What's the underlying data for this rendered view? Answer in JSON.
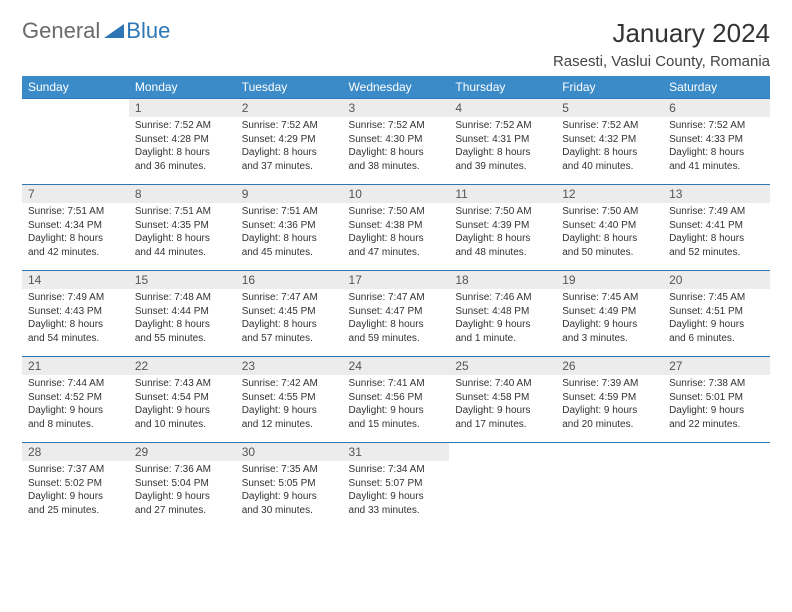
{
  "logo": {
    "general": "General",
    "blue": "Blue"
  },
  "title": "January 2024",
  "location": "Rasesti, Vaslui County, Romania",
  "colors": {
    "header_bg": "#3b8bc9",
    "header_text": "#ffffff",
    "daynum_bg": "#ececec",
    "border": "#2e76b6",
    "logo_gray": "#6a6a6a",
    "logo_blue": "#2e76b6"
  },
  "weekdays": [
    "Sunday",
    "Monday",
    "Tuesday",
    "Wednesday",
    "Thursday",
    "Friday",
    "Saturday"
  ],
  "weeks": [
    [
      {
        "empty": true
      },
      {
        "day": "1",
        "sunrise": "Sunrise: 7:52 AM",
        "sunset": "Sunset: 4:28 PM",
        "day1": "Daylight: 8 hours",
        "day2": "and 36 minutes."
      },
      {
        "day": "2",
        "sunrise": "Sunrise: 7:52 AM",
        "sunset": "Sunset: 4:29 PM",
        "day1": "Daylight: 8 hours",
        "day2": "and 37 minutes."
      },
      {
        "day": "3",
        "sunrise": "Sunrise: 7:52 AM",
        "sunset": "Sunset: 4:30 PM",
        "day1": "Daylight: 8 hours",
        "day2": "and 38 minutes."
      },
      {
        "day": "4",
        "sunrise": "Sunrise: 7:52 AM",
        "sunset": "Sunset: 4:31 PM",
        "day1": "Daylight: 8 hours",
        "day2": "and 39 minutes."
      },
      {
        "day": "5",
        "sunrise": "Sunrise: 7:52 AM",
        "sunset": "Sunset: 4:32 PM",
        "day1": "Daylight: 8 hours",
        "day2": "and 40 minutes."
      },
      {
        "day": "6",
        "sunrise": "Sunrise: 7:52 AM",
        "sunset": "Sunset: 4:33 PM",
        "day1": "Daylight: 8 hours",
        "day2": "and 41 minutes."
      }
    ],
    [
      {
        "day": "7",
        "sunrise": "Sunrise: 7:51 AM",
        "sunset": "Sunset: 4:34 PM",
        "day1": "Daylight: 8 hours",
        "day2": "and 42 minutes."
      },
      {
        "day": "8",
        "sunrise": "Sunrise: 7:51 AM",
        "sunset": "Sunset: 4:35 PM",
        "day1": "Daylight: 8 hours",
        "day2": "and 44 minutes."
      },
      {
        "day": "9",
        "sunrise": "Sunrise: 7:51 AM",
        "sunset": "Sunset: 4:36 PM",
        "day1": "Daylight: 8 hours",
        "day2": "and 45 minutes."
      },
      {
        "day": "10",
        "sunrise": "Sunrise: 7:50 AM",
        "sunset": "Sunset: 4:38 PM",
        "day1": "Daylight: 8 hours",
        "day2": "and 47 minutes."
      },
      {
        "day": "11",
        "sunrise": "Sunrise: 7:50 AM",
        "sunset": "Sunset: 4:39 PM",
        "day1": "Daylight: 8 hours",
        "day2": "and 48 minutes."
      },
      {
        "day": "12",
        "sunrise": "Sunrise: 7:50 AM",
        "sunset": "Sunset: 4:40 PM",
        "day1": "Daylight: 8 hours",
        "day2": "and 50 minutes."
      },
      {
        "day": "13",
        "sunrise": "Sunrise: 7:49 AM",
        "sunset": "Sunset: 4:41 PM",
        "day1": "Daylight: 8 hours",
        "day2": "and 52 minutes."
      }
    ],
    [
      {
        "day": "14",
        "sunrise": "Sunrise: 7:49 AM",
        "sunset": "Sunset: 4:43 PM",
        "day1": "Daylight: 8 hours",
        "day2": "and 54 minutes."
      },
      {
        "day": "15",
        "sunrise": "Sunrise: 7:48 AM",
        "sunset": "Sunset: 4:44 PM",
        "day1": "Daylight: 8 hours",
        "day2": "and 55 minutes."
      },
      {
        "day": "16",
        "sunrise": "Sunrise: 7:47 AM",
        "sunset": "Sunset: 4:45 PM",
        "day1": "Daylight: 8 hours",
        "day2": "and 57 minutes."
      },
      {
        "day": "17",
        "sunrise": "Sunrise: 7:47 AM",
        "sunset": "Sunset: 4:47 PM",
        "day1": "Daylight: 8 hours",
        "day2": "and 59 minutes."
      },
      {
        "day": "18",
        "sunrise": "Sunrise: 7:46 AM",
        "sunset": "Sunset: 4:48 PM",
        "day1": "Daylight: 9 hours",
        "day2": "and 1 minute."
      },
      {
        "day": "19",
        "sunrise": "Sunrise: 7:45 AM",
        "sunset": "Sunset: 4:49 PM",
        "day1": "Daylight: 9 hours",
        "day2": "and 3 minutes."
      },
      {
        "day": "20",
        "sunrise": "Sunrise: 7:45 AM",
        "sunset": "Sunset: 4:51 PM",
        "day1": "Daylight: 9 hours",
        "day2": "and 6 minutes."
      }
    ],
    [
      {
        "day": "21",
        "sunrise": "Sunrise: 7:44 AM",
        "sunset": "Sunset: 4:52 PM",
        "day1": "Daylight: 9 hours",
        "day2": "and 8 minutes."
      },
      {
        "day": "22",
        "sunrise": "Sunrise: 7:43 AM",
        "sunset": "Sunset: 4:54 PM",
        "day1": "Daylight: 9 hours",
        "day2": "and 10 minutes."
      },
      {
        "day": "23",
        "sunrise": "Sunrise: 7:42 AM",
        "sunset": "Sunset: 4:55 PM",
        "day1": "Daylight: 9 hours",
        "day2": "and 12 minutes."
      },
      {
        "day": "24",
        "sunrise": "Sunrise: 7:41 AM",
        "sunset": "Sunset: 4:56 PM",
        "day1": "Daylight: 9 hours",
        "day2": "and 15 minutes."
      },
      {
        "day": "25",
        "sunrise": "Sunrise: 7:40 AM",
        "sunset": "Sunset: 4:58 PM",
        "day1": "Daylight: 9 hours",
        "day2": "and 17 minutes."
      },
      {
        "day": "26",
        "sunrise": "Sunrise: 7:39 AM",
        "sunset": "Sunset: 4:59 PM",
        "day1": "Daylight: 9 hours",
        "day2": "and 20 minutes."
      },
      {
        "day": "27",
        "sunrise": "Sunrise: 7:38 AM",
        "sunset": "Sunset: 5:01 PM",
        "day1": "Daylight: 9 hours",
        "day2": "and 22 minutes."
      }
    ],
    [
      {
        "day": "28",
        "sunrise": "Sunrise: 7:37 AM",
        "sunset": "Sunset: 5:02 PM",
        "day1": "Daylight: 9 hours",
        "day2": "and 25 minutes."
      },
      {
        "day": "29",
        "sunrise": "Sunrise: 7:36 AM",
        "sunset": "Sunset: 5:04 PM",
        "day1": "Daylight: 9 hours",
        "day2": "and 27 minutes."
      },
      {
        "day": "30",
        "sunrise": "Sunrise: 7:35 AM",
        "sunset": "Sunset: 5:05 PM",
        "day1": "Daylight: 9 hours",
        "day2": "and 30 minutes."
      },
      {
        "day": "31",
        "sunrise": "Sunrise: 7:34 AM",
        "sunset": "Sunset: 5:07 PM",
        "day1": "Daylight: 9 hours",
        "day2": "and 33 minutes."
      },
      {
        "empty": true
      },
      {
        "empty": true
      },
      {
        "empty": true
      }
    ]
  ]
}
